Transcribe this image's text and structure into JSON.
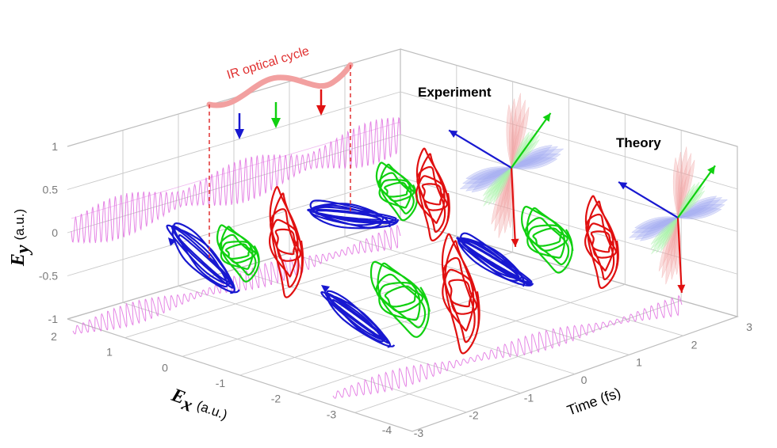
{
  "chart_data": {
    "type": "3d-line",
    "axes": {
      "ey": {
        "label_symbol": "E",
        "label_sub": "y",
        "label_unit": "(a.u.)",
        "ticks": [
          "1",
          "0.5",
          "0",
          "-0.5",
          "-1"
        ],
        "range": [
          -1,
          1
        ]
      },
      "ex": {
        "label_symbol": "E",
        "label_sub": "x",
        "label_unit": "(a.u.)",
        "ticks": [
          "2",
          "1",
          "0",
          "-1",
          "-2",
          "-3",
          "-4"
        ],
        "range": [
          -4,
          2
        ]
      },
      "time": {
        "label": "Time (fs)",
        "ticks": [
          "-3",
          "-2",
          "-1",
          "0",
          "1",
          "2",
          "3"
        ],
        "range": [
          -3,
          3
        ]
      }
    },
    "grid": true,
    "series": [
      {
        "color": "#1818d0",
        "kind": "electric-field trajectory"
      },
      {
        "color": "#10d010",
        "kind": "electric-field trajectory"
      },
      {
        "color": "#e01010",
        "kind": "electric-field trajectory"
      },
      {
        "color": "#e070e0",
        "kind": "projection"
      }
    ],
    "annotations": {
      "ir_cycle": "IR optical cycle",
      "experiment": "Experiment",
      "theory": "Theory"
    }
  },
  "colors": {
    "blue": "#1818d0",
    "green": "#10d010",
    "red": "#e01010",
    "projection": "#e070e0",
    "ir_line": "#e03030",
    "grid": "#bdbdbd"
  }
}
